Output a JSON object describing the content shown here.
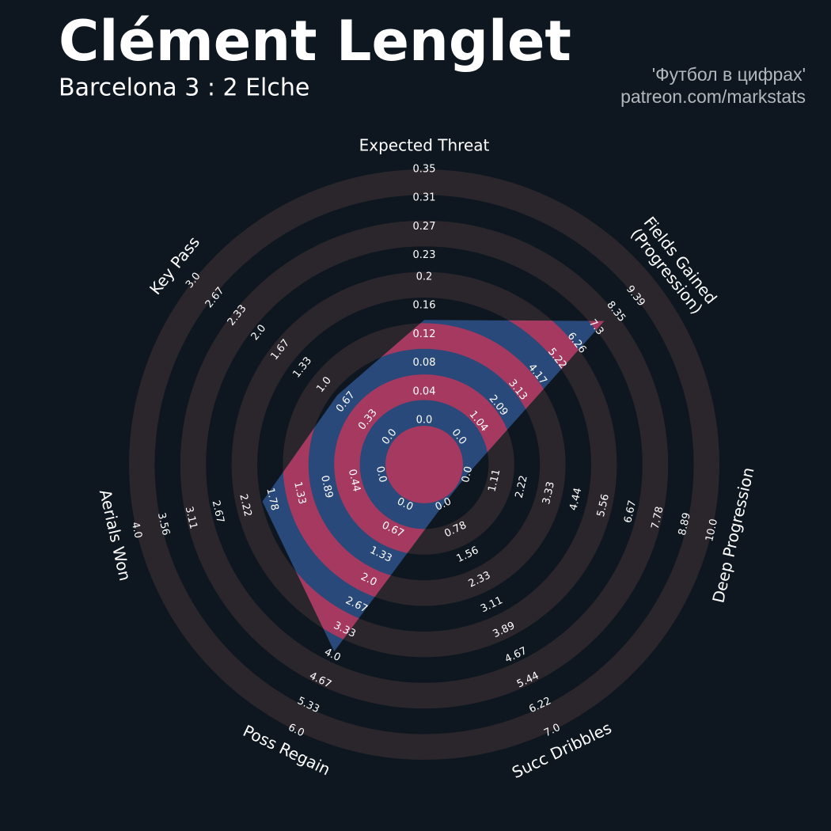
{
  "chart_data": {
    "type": "radar",
    "title": "Clément Lenglet",
    "subtitle": "Barcelona 3 : 2 Elche",
    "credits": [
      "'Футбол в цифрах'",
      "patreon.com/markstats"
    ],
    "categories": [
      "Expected Threat",
      "Fields Gained\n(Progression)",
      "Deep Progression",
      "Succ Dribbles",
      "Poss Regain",
      "Aerials Won",
      "Key Pass"
    ],
    "values": [
      0.14,
      7.73,
      0,
      0,
      3.9,
      1.94,
      0.8
    ],
    "color": "#28497a",
    "alt_color": "#a5395f",
    "ring_color": "#2a262c",
    "axes": [
      {
        "lim": [
          0,
          0.35
        ],
        "ticks": [
          {
            "value": 0,
            "label": "0.0"
          },
          0.04,
          0.08,
          0.12,
          0.16,
          0.2,
          0.23,
          0.27,
          0.31,
          0.35
        ]
      },
      {
        "lim": [
          0,
          10.43
        ],
        "ticks": [
          {
            "value": 0,
            "label": "0.0"
          },
          1.04,
          2.09,
          3.13,
          4.17,
          5.22,
          6.26,
          7.3,
          8.35,
          9.39
        ]
      },
      {
        "lim": [
          0,
          10
        ],
        "ticks": [
          {
            "value": 0,
            "label": "0.0"
          },
          1.11,
          2.22,
          3.33,
          4.44,
          5.56,
          6.67,
          7.78,
          8.89,
          {
            "value": 10,
            "label": "10.0"
          }
        ]
      },
      {
        "lim": [
          0,
          7
        ],
        "ticks": [
          {
            "value": 0,
            "label": "0.0"
          },
          0.78,
          1.56,
          2.33,
          3.11,
          3.89,
          4.67,
          5.44,
          6.22,
          {
            "value": 7,
            "label": "7.0"
          }
        ]
      },
      {
        "lim": [
          0,
          6
        ],
        "ticks": [
          {
            "value": 0,
            "label": "0.0"
          },
          0.67,
          1.33,
          {
            "value": 2,
            "label": "2.0"
          },
          2.67,
          3.33,
          {
            "value": 4,
            "label": "4.0"
          },
          4.67,
          5.33,
          {
            "value": 6,
            "label": "6.0"
          }
        ]
      },
      {
        "lim": [
          0,
          4
        ],
        "ticks": [
          {
            "value": 0,
            "label": "0.0"
          },
          0.44,
          0.89,
          1.33,
          1.78,
          2.22,
          2.67,
          3.11,
          3.56,
          {
            "value": 4,
            "label": "4.0"
          }
        ]
      },
      {
        "lim": [
          0,
          3
        ],
        "ticks": [
          {
            "value": 0,
            "label": "0.0"
          },
          0.33,
          0.67,
          {
            "value": 1,
            "label": "1.0"
          },
          1.33,
          1.67,
          {
            "value": 2,
            "label": "2.0"
          },
          2.33,
          2.67,
          {
            "value": 3,
            "label": "3.0"
          }
        ]
      }
    ]
  }
}
